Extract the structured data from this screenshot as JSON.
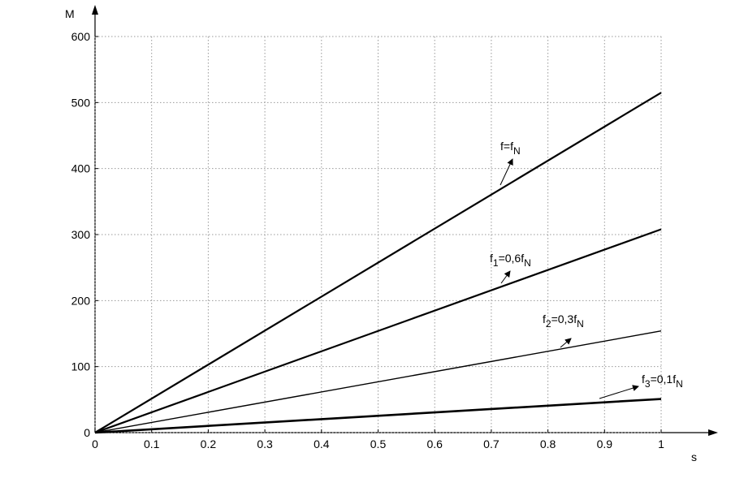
{
  "chart_data": {
    "type": "line",
    "x_label": "s",
    "y_label": "M",
    "x": [
      0,
      1
    ],
    "series": [
      {
        "values": [
          0,
          515
        ],
        "color": "#000000"
      },
      {
        "values": [
          0,
          308
        ],
        "color": "#000000"
      },
      {
        "values": [
          0,
          154
        ],
        "color": "#000000"
      },
      {
        "values": [
          0,
          51
        ],
        "color": "#000000"
      }
    ],
    "annotations": [
      {
        "parts": [
          {
            "text": "f=f",
            "sub": false
          },
          {
            "text": "N",
            "sub": true
          }
        ]
      },
      {
        "parts": [
          {
            "text": "f",
            "sub": false
          },
          {
            "text": "1",
            "sub": true
          },
          {
            "text": "=0,6f",
            "sub": false
          },
          {
            "text": "N",
            "sub": true
          }
        ]
      },
      {
        "parts": [
          {
            "text": "f",
            "sub": false
          },
          {
            "text": "2",
            "sub": true
          },
          {
            "text": "=0,3f",
            "sub": false
          },
          {
            "text": "N",
            "sub": true
          }
        ]
      },
      {
        "parts": [
          {
            "text": "f",
            "sub": false
          },
          {
            "text": "3",
            "sub": true
          },
          {
            "text": "=0,1f",
            "sub": false
          },
          {
            "text": "N",
            "sub": true
          }
        ]
      }
    ],
    "xlim": [
      0,
      1
    ],
    "xticks": [
      0,
      0.1,
      0.2,
      0.3,
      0.4,
      0.5,
      0.6,
      0.7,
      0.8,
      0.9,
      1
    ],
    "ylim": [
      0,
      600
    ],
    "yticks": [
      0,
      100,
      200,
      300,
      400,
      500,
      600
    ],
    "grid": true
  }
}
